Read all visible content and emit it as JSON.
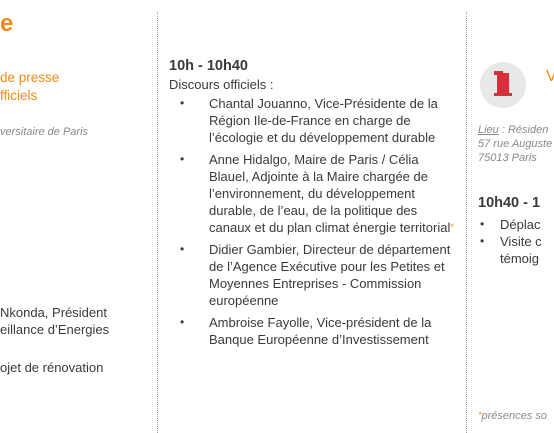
{
  "left": {
    "heading_letter": "e",
    "orange_lines": [
      "de presse",
      "fficiels"
    ],
    "italic_line": "versitaire de Paris",
    "text_lines": [
      "Nkonda, Président",
      "eillance d’Energies",
      "ojet de rénovation"
    ]
  },
  "middle": {
    "time": "10h - 10h40",
    "intro": "Discours officiels :",
    "speakers": [
      {
        "text": "Chantal Jouanno, Vice-Présidente de la Région Ile-de-France en charge de l’écologie et du développement durable"
      },
      {
        "text": "Anne Hidalgo, Maire de Paris / Célia Blauel, Adjointe à la Maire chargée de l’environnement, du développement durable, de l’eau, de la politique des canaux et du plan climat énergie territorial",
        "star": "*"
      },
      {
        "text": "Didier Gambier, Directeur de département de l’Agence Exécutive pour les Petites et Moyennes Entreprises - Commission européenne"
      },
      {
        "text": "Ambroise Fayolle, Vice-président de la Banque Européenne d’Investissement"
      }
    ]
  },
  "right": {
    "icon": "building-icon",
    "venue_letter": "V",
    "lieu_key": "Lieu",
    "lieu_rest": " : Résiden",
    "address_lines": [
      "57 rue Auguste",
      "75013 Paris"
    ],
    "time": "10h40 - 1",
    "items": [
      "Déplac",
      "Visite c",
      "témoig"
    ],
    "footnote_star": "*",
    "footnote": "présences so"
  },
  "colors": {
    "accent": "#f08a1c",
    "icon_red": "#d6303a"
  }
}
